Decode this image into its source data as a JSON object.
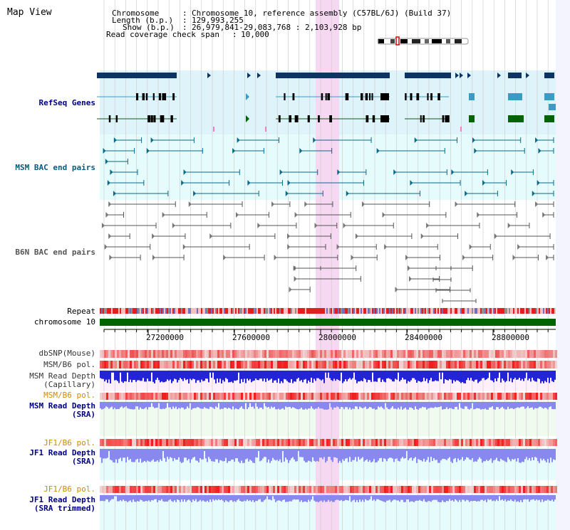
{
  "window": {
    "title": "Map View"
  },
  "info": {
    "chromosome_key": "Chromosome",
    "chromosome_val": "Chromosome 10, reference assembly (C57BL/6J) (Build 37)",
    "length_key": "Length (b.p.)",
    "length_val": "129,993,255",
    "show_key": "Show (b.p.)",
    "show_val": "26,979,841-29,083,768 : 2,103,928 bp",
    "coverage_key": "Read coverage check span",
    "coverage_val": "10,000"
  },
  "tracks": {
    "refseq": "RefSeq Genes",
    "msm_bac": "MSM BAC end pairs",
    "b6n_bac": "B6N BAC end pairs",
    "repeat": "Repeat",
    "chrom": "chromosome 10",
    "dbsnp": "dbSNP(Mouse)",
    "msm_b6_pol_1": "MSM/B6 pol.",
    "msm_depth_cap_1": "MSM Read Depth",
    "msm_depth_cap_2": "(Capillary)",
    "msm_b6_pol_2": "MSM/B6 pol.",
    "msm_depth_sra_1": "MSM Read Depth",
    "msm_depth_sra_2": "(SRA)",
    "jf1_b6_pol_1": "JF1/B6 pol.",
    "jf1_depth_sra_1": "JF1 Read Depth",
    "jf1_depth_sra_2": "(SRA)",
    "jf1_b6_pol_2": "JF1/B6 pol.",
    "jf1_depth_trim_1": "JF1 Read Depth",
    "jf1_depth_trim_2": "(SRA trimmed)"
  },
  "axis": {
    "ticks": [
      "27200000",
      "27600000",
      "28000000",
      "28400000",
      "28800000"
    ]
  },
  "colors": {
    "refseq_bg": "#dff3fb",
    "msm_bg": "#e6fbfb",
    "highlight": "#f7d8f3",
    "gene_navy": "#0e3463",
    "gene_green": "#006400",
    "chrom_green": "#006400",
    "depth_blue": "#2323d8",
    "depth_violet": "#8888ee",
    "pol_red": "#e83838",
    "label_navy": "#000080",
    "label_teal": "#0a5a7a",
    "label_orange": "#d08a00"
  }
}
